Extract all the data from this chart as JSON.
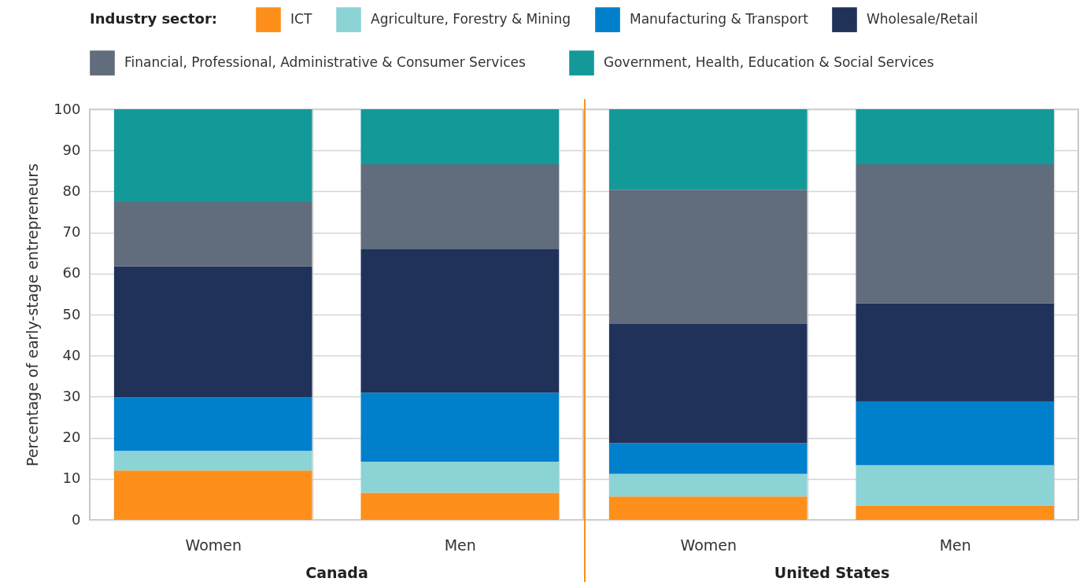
{
  "chart_data": [
    {
      "type": "bar",
      "stacked": true,
      "xlabel": "Canada",
      "ylabel": "Percentage of early-stage entrepreneurs",
      "legend_title": "Industry sector:",
      "legend": "top",
      "grid": true,
      "categories": [
        "Women",
        "Men"
      ],
      "ylim": [
        0,
        100
      ],
      "yticks": [
        0,
        10,
        20,
        30,
        40,
        50,
        60,
        70,
        80,
        90,
        100
      ],
      "series": [
        {
          "name": "ICT",
          "color": "#fd8f1a",
          "values": [
            12.0,
            6.6
          ]
        },
        {
          "name": "Agriculture, Forestry & Mining",
          "color": "#8cd3d6",
          "values": [
            4.8,
            7.6
          ]
        },
        {
          "name": "Manufacturing & Transport",
          "color": "#0080cb",
          "values": [
            13.0,
            16.8
          ]
        },
        {
          "name": "Wholesale/Retail",
          "color": "#20325a",
          "values": [
            32.0,
            34.9
          ]
        },
        {
          "name": "Financial, Professional, Administrative & Consumer Services",
          "color": "#616c7c",
          "values": [
            15.6,
            20.7
          ]
        },
        {
          "name": "Government, Health, Education & Social Services",
          "color": "#149999",
          "values": [
            22.6,
            13.4
          ]
        }
      ]
    },
    {
      "type": "bar",
      "stacked": true,
      "xlabel": "United States",
      "grid": true,
      "tick_labels": "x",
      "categories": [
        "Women",
        "Men"
      ],
      "ylim": [
        0,
        100
      ],
      "yticks": [
        0,
        10,
        20,
        30,
        40,
        50,
        60,
        70,
        80,
        90,
        100
      ],
      "series": [
        {
          "name": "ICT",
          "color": "#fd8f1a",
          "values": [
            5.7,
            3.5
          ]
        },
        {
          "name": "Agriculture, Forestry & Mining",
          "color": "#8cd3d6",
          "values": [
            5.5,
            9.8
          ]
        },
        {
          "name": "Manufacturing & Transport",
          "color": "#0080cb",
          "values": [
            7.5,
            15.5
          ]
        },
        {
          "name": "Wholesale/Retail",
          "color": "#20325a",
          "values": [
            29.0,
            24.0
          ]
        },
        {
          "name": "Financial, Professional, Administrative & Consumer Services",
          "color": "#616c7c",
          "values": [
            32.7,
            33.8
          ]
        },
        {
          "name": "Government, Health, Education & Social Services",
          "color": "#149999",
          "values": [
            19.6,
            13.4
          ]
        }
      ]
    }
  ]
}
